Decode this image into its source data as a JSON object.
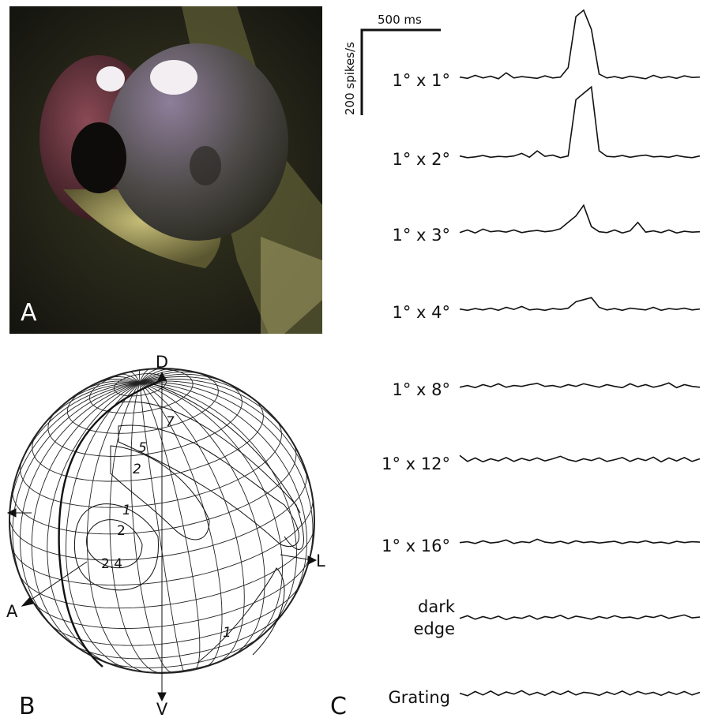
{
  "panels": {
    "photo": {
      "letter": "A"
    },
    "sphere": {
      "letter": "B",
      "directions": {
        "dorsal": "D",
        "ventral": "V",
        "lateral": "L",
        "anterior": "A"
      },
      "contour_labels": [
        "7",
        "5",
        "2",
        "1",
        "2",
        "2.4",
        "1"
      ]
    },
    "traces": {
      "letter": "C",
      "time_scale": "500 ms",
      "rate_scale": "200 spikes/s",
      "rows": [
        {
          "label": "1° x 1°",
          "values": [
            8,
            5,
            12,
            6,
            10,
            4,
            18,
            6,
            9,
            7,
            5,
            11,
            6,
            8,
            30,
            150,
            165,
            120,
            15,
            6,
            9,
            5,
            10,
            7,
            4,
            12,
            6,
            9,
            5,
            11,
            7,
            8
          ]
        },
        {
          "label": "1° x 2°",
          "values": [
            8,
            4,
            6,
            9,
            5,
            7,
            6,
            8,
            14,
            5,
            20,
            7,
            10,
            4,
            8,
            140,
            155,
            170,
            20,
            7,
            6,
            9,
            5,
            8,
            10,
            6,
            7,
            5,
            9,
            6,
            4,
            8
          ]
        },
        {
          "label": "1° x 3°",
          "values": [
            6,
            12,
            5,
            14,
            8,
            10,
            7,
            12,
            6,
            9,
            11,
            8,
            10,
            15,
            30,
            45,
            70,
            20,
            8,
            6,
            12,
            5,
            10,
            30,
            7,
            10,
            6,
            12,
            5,
            9,
            7,
            8
          ]
        },
        {
          "label": "1° x 4°",
          "values": [
            8,
            5,
            9,
            6,
            10,
            5,
            12,
            7,
            14,
            6,
            8,
            5,
            9,
            7,
            10,
            25,
            30,
            35,
            12,
            6,
            9,
            5,
            10,
            8,
            6,
            12,
            5,
            9,
            7,
            10,
            6,
            8
          ]
        },
        {
          "label": "1° x 8°",
          "values": [
            6,
            10,
            5,
            12,
            7,
            14,
            6,
            10,
            8,
            12,
            15,
            8,
            10,
            6,
            12,
            8,
            14,
            10,
            6,
            12,
            8,
            5,
            14,
            7,
            12,
            6,
            10,
            16,
            5,
            12,
            8,
            6
          ]
        },
        {
          "label": "1° x 12°",
          "values": [
            20,
            6,
            14,
            5,
            12,
            7,
            15,
            6,
            13,
            8,
            14,
            7,
            12,
            18,
            10,
            6,
            12,
            8,
            14,
            6,
            10,
            15,
            6,
            13,
            8,
            16,
            5,
            14,
            7,
            15,
            6,
            12
          ]
        },
        {
          "label": "1° x 16°",
          "values": [
            8,
            10,
            6,
            12,
            7,
            9,
            14,
            6,
            10,
            8,
            16,
            9,
            7,
            11,
            6,
            12,
            8,
            10,
            7,
            9,
            11,
            6,
            10,
            8,
            12,
            7,
            9,
            6,
            11,
            8,
            10,
            9
          ]
        },
        {
          "label": "dark edge",
          "values": [
            8,
            14,
            6,
            12,
            7,
            13,
            5,
            11,
            8,
            14,
            6,
            12,
            9,
            15,
            7,
            13,
            10,
            6,
            12,
            8,
            14,
            9,
            11,
            7,
            13,
            10,
            15,
            8,
            12,
            16,
            9,
            11
          ]
        },
        {
          "label": "Grating",
          "values": [
            10,
            4,
            14,
            6,
            15,
            5,
            13,
            8,
            16,
            6,
            12,
            5,
            14,
            7,
            15,
            6,
            12,
            10,
            5,
            13,
            7,
            15,
            6,
            14,
            8,
            12,
            5,
            13,
            7,
            14,
            6,
            12
          ]
        }
      ]
    }
  }
}
